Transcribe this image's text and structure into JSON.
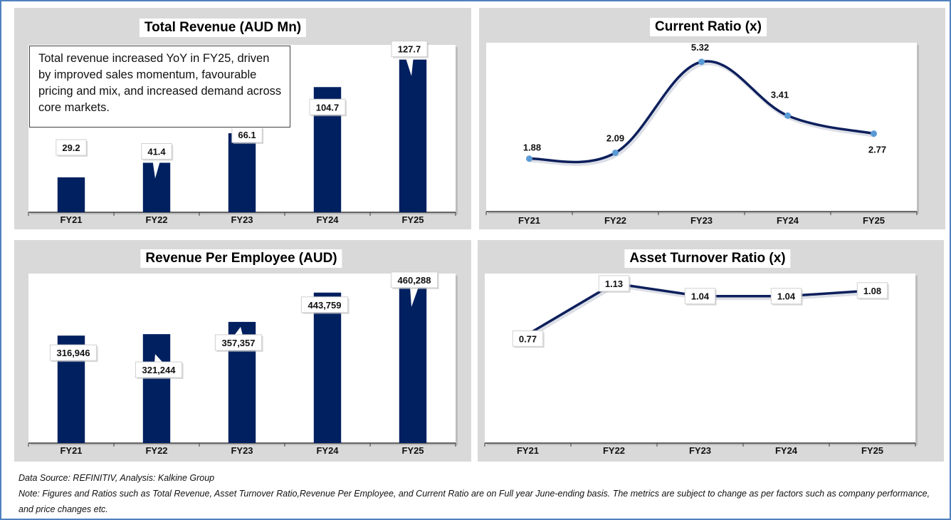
{
  "colors": {
    "frame_border": "#4f81bd",
    "panel_bg": "#d9d9d9",
    "plot_bg": "#ffffff",
    "bar": "#002060",
    "line": "#0d1f5c",
    "marker": "#5b9bd5"
  },
  "chart_data": [
    {
      "id": "total-revenue",
      "type": "bar",
      "title": "Total Revenue (AUD Mn)",
      "categories": [
        "FY21",
        "FY22",
        "FY23",
        "FY24",
        "FY25"
      ],
      "values": [
        29.2,
        41.4,
        66.1,
        104.7,
        127.7
      ],
      "value_labels": [
        "29.2",
        "41.4",
        "66.1",
        "104.7",
        "127.7"
      ],
      "xlabel": "",
      "ylabel": "",
      "ylim": [
        0,
        140
      ],
      "grid": false,
      "annotation": "Total revenue increased YoY in FY25, driven by improved sales momentum, favourable pricing and mix, and increased demand across core markets."
    },
    {
      "id": "current-ratio",
      "type": "line",
      "smooth": true,
      "title": "Current Ratio (x)",
      "categories": [
        "FY21",
        "FY22",
        "FY23",
        "FY24",
        "FY25"
      ],
      "values": [
        1.88,
        2.09,
        5.32,
        3.41,
        2.77
      ],
      "value_labels": [
        "1.88",
        "2.09",
        "5.32",
        "3.41",
        "2.77"
      ],
      "xlabel": "",
      "ylabel": "",
      "ylim": [
        0,
        6
      ],
      "grid": false
    },
    {
      "id": "revenue-per-employee",
      "type": "bar",
      "title": "Revenue Per Employee (AUD)",
      "categories": [
        "FY21",
        "FY22",
        "FY23",
        "FY24",
        "FY25"
      ],
      "values": [
        316946,
        321244,
        357357,
        443759,
        460288
      ],
      "value_labels": [
        "316,946",
        "321,244",
        "357,357",
        "443,759",
        "460,288"
      ],
      "xlabel": "",
      "ylabel": "",
      "ylim": [
        0,
        500000
      ],
      "grid": false
    },
    {
      "id": "asset-turnover",
      "type": "line",
      "smooth": false,
      "title": "Asset Turnover Ratio (x)",
      "categories": [
        "FY21",
        "FY22",
        "FY23",
        "FY24",
        "FY25"
      ],
      "values": [
        0.77,
        1.13,
        1.04,
        1.04,
        1.08
      ],
      "value_labels": [
        "0.77",
        "1.13",
        "1.04",
        "1.04",
        "1.08"
      ],
      "xlabel": "",
      "ylabel": "",
      "ylim": [
        0,
        1.2
      ],
      "grid": false
    }
  ],
  "footer": {
    "source": "Data Source: REFINITIV, Analysis: Kalkine Group",
    "note": "Note: Figures and Ratios such as Total Revenue, Asset Turnover Ratio,Revenue Per Employee, and Current Ratio are on Full year June-ending basis. The metrics are subject to change as per factors such as company performance, and price changes etc."
  }
}
